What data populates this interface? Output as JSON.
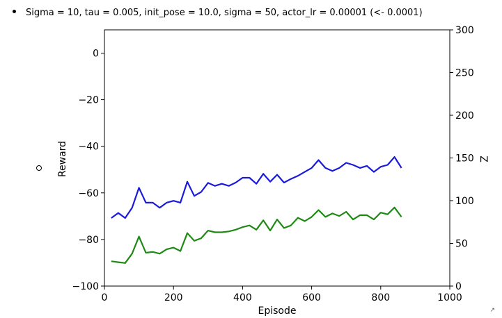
{
  "header": {
    "bullet_text": "Sigma = 10, tau = 0.005, init_pose = 10.0, sigma = 50, actor_lr = 0.00001 (<- 0.0001)"
  },
  "chart_data": {
    "type": "line",
    "title": "",
    "xlabel": "Episode",
    "ylabel": "Reward",
    "y2label": "Z",
    "xlim": [
      0,
      1000
    ],
    "ylim": [
      -100,
      10
    ],
    "y2lim": [
      0,
      300
    ],
    "x_ticks": [
      "0",
      "200",
      "400",
      "600",
      "800",
      "1000"
    ],
    "y_ticks": [
      "0",
      "−20",
      "−40",
      "−60",
      "−80",
      "−100"
    ],
    "y2_ticks": [
      "0",
      "50",
      "100",
      "150",
      "200",
      "250",
      "300"
    ],
    "grid": false,
    "x": [
      20,
      40,
      60,
      80,
      100,
      120,
      140,
      160,
      180,
      200,
      220,
      240,
      260,
      280,
      300,
      320,
      340,
      360,
      380,
      400,
      420,
      440,
      460,
      480,
      500,
      520,
      540,
      560,
      580,
      600,
      620,
      640,
      660,
      680,
      700,
      720,
      740,
      760,
      780,
      800,
      820,
      840,
      860
    ],
    "series": [
      {
        "axis": "left",
        "color": "#1a1adb",
        "values": [
          -70.8,
          -68.6,
          -70.8,
          -66.4,
          -57.8,
          -64.2,
          -64.2,
          -66.4,
          -64.2,
          -63.4,
          -64.2,
          -55.2,
          -61.3,
          -59.6,
          -55.7,
          -57.0,
          -56.1,
          -57.0,
          -55.6,
          -53.5,
          -53.5,
          -56.1,
          -51.8,
          -55.2,
          -52.2,
          -55.6,
          -54.0,
          -52.7,
          -51.0,
          -49.3,
          -45.9,
          -49.3,
          -50.6,
          -49.3,
          -47.1,
          -48.0,
          -49.3,
          -48.4,
          -51.0,
          -48.8,
          -48.0,
          -44.6,
          -49.3
        ]
      },
      {
        "axis": "right",
        "color": "#1e8a14",
        "values": [
          29,
          28,
          27,
          38,
          58,
          39,
          40,
          38,
          43,
          45,
          41,
          62,
          53,
          56,
          65,
          63,
          63,
          64,
          66,
          69,
          71,
          66,
          77,
          65,
          78,
          68,
          71,
          80,
          76,
          81,
          89,
          81,
          85,
          82,
          87,
          78,
          83,
          83,
          78,
          86,
          84,
          92,
          81
        ]
      }
    ]
  }
}
